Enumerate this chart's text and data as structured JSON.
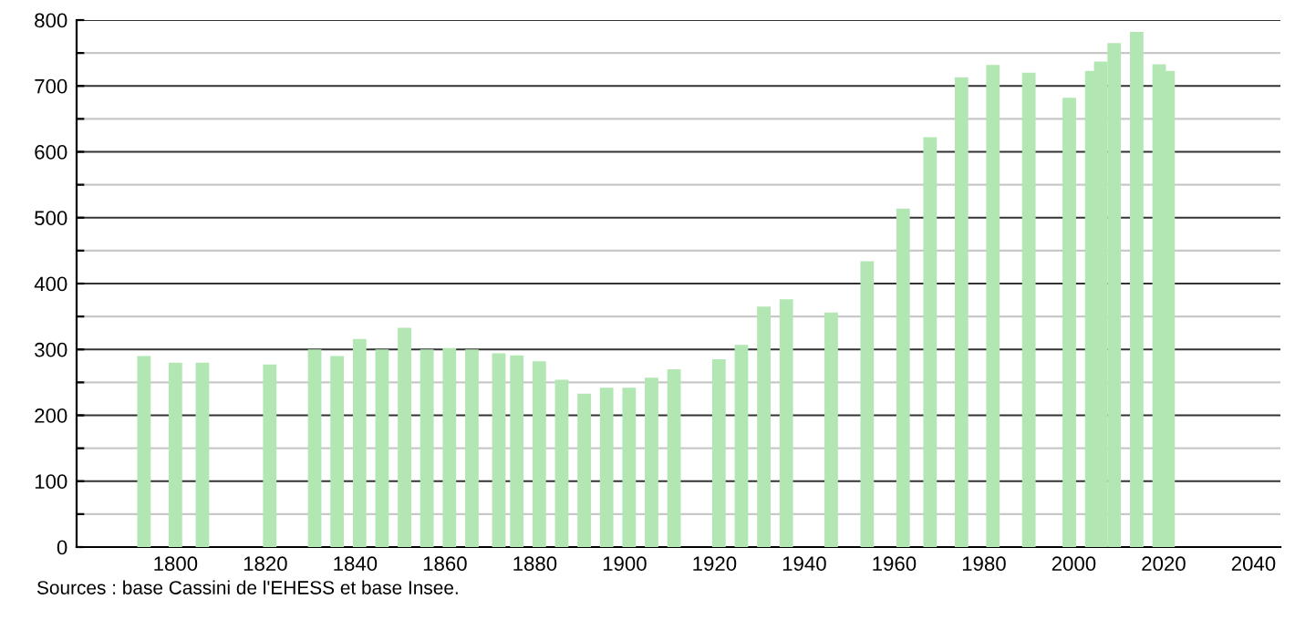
{
  "chart_data": {
    "type": "bar",
    "color": "#b2e6b2",
    "x": [
      1793,
      1800,
      1806,
      1821,
      1831,
      1836,
      1841,
      1846,
      1851,
      1856,
      1861,
      1866,
      1872,
      1876,
      1881,
      1886,
      1891,
      1896,
      1901,
      1906,
      1911,
      1921,
      1926,
      1931,
      1936,
      1946,
      1954,
      1962,
      1968,
      1975,
      1982,
      1990,
      1999,
      2004,
      2006,
      2009,
      2014,
      2019,
      2021
    ],
    "values": [
      290,
      280,
      280,
      277,
      300,
      290,
      316,
      300,
      333,
      300,
      302,
      300,
      294,
      291,
      282,
      254,
      233,
      242,
      242,
      257,
      270,
      285,
      307,
      365,
      376,
      356,
      434,
      514,
      622,
      713,
      732,
      720,
      682,
      723,
      737,
      765,
      782,
      733,
      723
    ],
    "xlim": [
      1778,
      2046
    ],
    "xticks": [
      1800,
      1820,
      1840,
      1860,
      1880,
      1900,
      1920,
      1940,
      1960,
      1980,
      2000,
      2020,
      2040
    ],
    "ylim": [
      0,
      800
    ],
    "yticks": [
      0,
      {
        "value": 50,
        "label": null
      },
      100,
      {
        "value": 150,
        "label": null
      },
      200,
      {
        "value": 250,
        "label": null
      },
      300,
      {
        "value": 350,
        "label": null
      },
      400,
      {
        "value": 450,
        "label": null
      },
      500,
      {
        "value": 550,
        "label": null
      },
      600,
      {
        "value": 650,
        "label": null
      },
      700,
      {
        "value": 750,
        "label": null
      },
      800
    ],
    "grid": "y",
    "legend": false,
    "annotations": [
      "Sources : base Cassini de l'EHESS et base Insee."
    ]
  }
}
